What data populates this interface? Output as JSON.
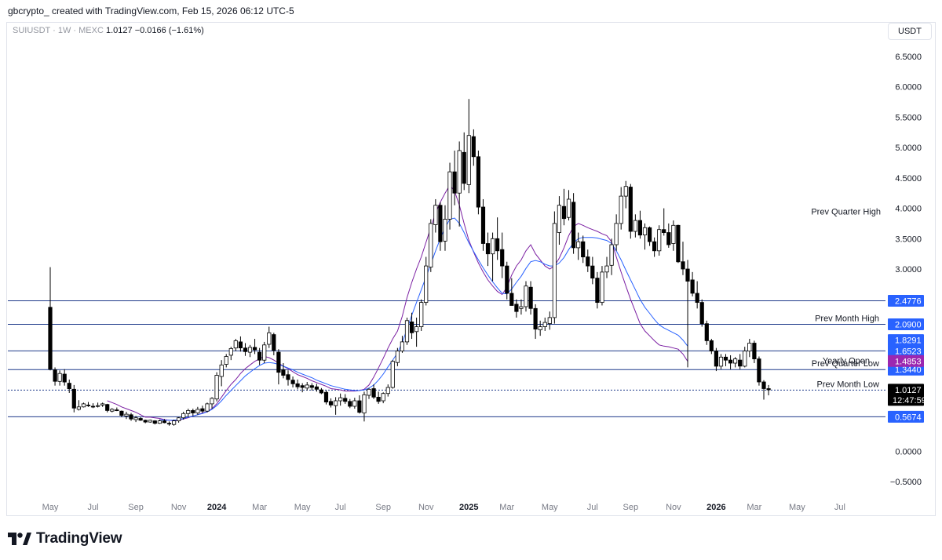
{
  "header": {
    "credit": "gbcrypto_ created with TradingView.com, Feb 15, 2026 06:12 UTC-5"
  },
  "symbol": {
    "name": "SUIUSDT · 1W · MEXC",
    "last": "1.0127",
    "change": "−0.0166 (−1.61%)"
  },
  "currency_button": "USDT",
  "brand": {
    "name": "TradingView",
    "logo_icon": "tradingview-logo-icon"
  },
  "colors": {
    "up": "#ffffff",
    "down": "#000000",
    "wick": "#000000",
    "ema_fast": "#7b1fa2",
    "ema_slow": "#2962ff",
    "level": "#1e3a8a",
    "label_bg": "#2962ff",
    "yearly_bg": "#9c27b0",
    "last_bg": "#000000"
  },
  "chart_data": {
    "type": "candlestick",
    "timeframe": "1W",
    "ylim": [
      -0.6,
      6.8
    ],
    "y_ticks": [
      6.5,
      6.0,
      5.5,
      5.0,
      4.5,
      4.0,
      3.5,
      3.0,
      0.0,
      -0.5
    ],
    "y_tick_labels": [
      "6.5000",
      "6.0000",
      "5.5000",
      "5.0000",
      "4.5000",
      "4.0000",
      "3.5000",
      "3.0000",
      "0.0000",
      "−0.5000"
    ],
    "x_ticks": [
      {
        "label": "May",
        "year": false,
        "i": 0
      },
      {
        "label": "Jul",
        "year": false,
        "i": 9
      },
      {
        "label": "Sep",
        "year": false,
        "i": 18
      },
      {
        "label": "Nov",
        "year": false,
        "i": 27
      },
      {
        "label": "2024",
        "year": true,
        "i": 35
      },
      {
        "label": "Mar",
        "year": false,
        "i": 44
      },
      {
        "label": "May",
        "year": false,
        "i": 53
      },
      {
        "label": "Jul",
        "year": false,
        "i": 61
      },
      {
        "label": "Sep",
        "year": false,
        "i": 70
      },
      {
        "label": "Nov",
        "year": false,
        "i": 79
      },
      {
        "label": "2025",
        "year": true,
        "i": 88
      },
      {
        "label": "Mar",
        "year": false,
        "i": 96
      },
      {
        "label": "May",
        "year": false,
        "i": 105
      },
      {
        "label": "Jul",
        "year": false,
        "i": 114
      },
      {
        "label": "Sep",
        "year": false,
        "i": 122
      },
      {
        "label": "Nov",
        "year": false,
        "i": 131
      },
      {
        "label": "2026",
        "year": true,
        "i": 140
      },
      {
        "label": "Mar",
        "year": false,
        "i": 148
      },
      {
        "label": "May",
        "year": false,
        "i": 157
      },
      {
        "label": "Jul",
        "year": false,
        "i": 166
      }
    ],
    "levels": [
      {
        "value": 2.4776,
        "label": "2.4776",
        "name": "",
        "style": "solid"
      },
      {
        "value": 2.09,
        "label": "2.0900",
        "name": "Prev Month High",
        "style": "solid"
      },
      {
        "value": 1.6523,
        "label": "1.6523",
        "name": "",
        "style": "solid"
      },
      {
        "value": 1.344,
        "label": "1.3440",
        "name": "Prev Quarter Low",
        "style": "solid"
      },
      {
        "value": 1.0058,
        "label": "1.0058",
        "name": "Prev Month Low",
        "style": "dashed"
      },
      {
        "value": 0.5674,
        "label": "0.5674",
        "name": "",
        "style": "solid"
      }
    ],
    "price_labels": [
      {
        "value": 1.8291,
        "label": "1.8291",
        "kind": "plain"
      },
      {
        "value": 1.4853,
        "label": "1.4853",
        "kind": "yearly"
      },
      {
        "value": 1.0127,
        "label": "1.0127",
        "kind": "last",
        "timer": "12:47:59"
      }
    ],
    "annotations": [
      {
        "text": "Prev Quarter High",
        "value": 3.95
      },
      {
        "text": "Yearly Open",
        "value": 1.4853
      }
    ],
    "series": [
      {
        "name": "",
        "kind": "ema-fast",
        "values": [
          null,
          null,
          null,
          null,
          null,
          null,
          null,
          null,
          null,
          null,
          null,
          null,
          0.83,
          0.8,
          0.77,
          0.73,
          0.7,
          0.67,
          0.64,
          0.6,
          0.56,
          0.56,
          0.55,
          0.54,
          0.52,
          0.51,
          0.5,
          0.51,
          0.53,
          0.55,
          0.58,
          0.6,
          0.63,
          0.65,
          0.7,
          0.78,
          0.89,
          1.0,
          1.1,
          1.18,
          1.28,
          1.36,
          1.42,
          1.48,
          1.52,
          1.56,
          1.54,
          1.5,
          1.45,
          1.4,
          1.36,
          1.31,
          1.26,
          1.23,
          1.2,
          1.16,
          1.13,
          1.1,
          1.07,
          1.03,
          1.02,
          1.01,
          0.99,
          0.99,
          0.99,
          1.0,
          1.02,
          1.09,
          1.22,
          1.37,
          1.53,
          1.7,
          1.85,
          1.98,
          2.22,
          2.53,
          2.78,
          3.0,
          3.2,
          3.44,
          3.68,
          3.92,
          4.1,
          4.25,
          4.38,
          4.28,
          4.05,
          3.75,
          3.47,
          3.28,
          3.1,
          2.95,
          2.82,
          2.72,
          2.63,
          2.58,
          2.7,
          2.9,
          3.05,
          3.15,
          3.3,
          3.4,
          3.25,
          3.15,
          3.05,
          3.0,
          3.05,
          3.18,
          3.35,
          3.55,
          3.7,
          3.75,
          3.72,
          3.68,
          3.65,
          3.62,
          3.58,
          3.55,
          3.45,
          3.2,
          2.95,
          2.72,
          2.5,
          2.3,
          2.1,
          1.98,
          1.9,
          1.82,
          1.75,
          1.73,
          1.72,
          1.7,
          1.68,
          1.6,
          1.48
        ]
      },
      {
        "name": "",
        "kind": "ema-slow",
        "values": [
          null,
          null,
          null,
          null,
          null,
          null,
          null,
          null,
          null,
          null,
          null,
          null,
          null,
          null,
          null,
          null,
          null,
          null,
          null,
          null,
          null,
          null,
          null,
          0.52,
          0.51,
          0.51,
          0.51,
          0.52,
          0.54,
          0.56,
          0.58,
          0.6,
          0.62,
          0.65,
          0.69,
          0.75,
          0.83,
          0.92,
          1.0,
          1.08,
          1.16,
          1.24,
          1.3,
          1.36,
          1.41,
          1.45,
          1.46,
          1.45,
          1.43,
          1.4,
          1.37,
          1.34,
          1.3,
          1.27,
          1.24,
          1.21,
          1.17,
          1.14,
          1.11,
          1.08,
          1.06,
          1.04,
          1.02,
          1.01,
          1.0,
          1.0,
          1.01,
          1.04,
          1.09,
          1.17,
          1.27,
          1.39,
          1.5,
          1.62,
          1.79,
          2.01,
          2.24,
          2.45,
          2.66,
          2.87,
          3.08,
          3.3,
          3.5,
          3.68,
          3.82,
          3.84,
          3.75,
          3.6,
          3.43,
          3.29,
          3.15,
          3.02,
          2.9,
          2.79,
          2.69,
          2.6,
          2.59,
          2.67,
          2.78,
          2.88,
          3.01,
          3.12,
          3.14,
          3.12,
          3.08,
          3.05,
          3.05,
          3.1,
          3.19,
          3.32,
          3.43,
          3.5,
          3.52,
          3.52,
          3.52,
          3.51,
          3.49,
          3.47,
          3.42,
          3.3,
          3.15,
          2.98,
          2.82,
          2.66,
          2.5,
          2.37,
          2.27,
          2.17,
          2.08,
          2.03,
          1.99,
          1.95,
          1.91,
          1.83,
          1.73
        ]
      }
    ],
    "candles": [
      [
        2.37,
        3.03,
        1.33,
        1.35
      ],
      [
        1.34,
        1.38,
        1.08,
        1.15
      ],
      [
        1.15,
        1.33,
        1.08,
        1.28
      ],
      [
        1.27,
        1.35,
        1.08,
        1.14
      ],
      [
        1.12,
        1.18,
        0.96,
        1.03
      ],
      [
        1.02,
        1.09,
        0.64,
        0.71
      ],
      [
        0.69,
        0.84,
        0.67,
        0.73
      ],
      [
        0.73,
        0.8,
        0.72,
        0.78
      ],
      [
        0.76,
        0.81,
        0.73,
        0.75
      ],
      [
        0.74,
        0.79,
        0.71,
        0.73
      ],
      [
        0.74,
        0.8,
        0.72,
        0.75
      ],
      [
        0.76,
        0.8,
        0.73,
        0.78
      ],
      [
        0.77,
        0.78,
        0.64,
        0.67
      ],
      [
        0.66,
        0.71,
        0.64,
        0.69
      ],
      [
        0.68,
        0.72,
        0.66,
        0.67
      ],
      [
        0.66,
        0.67,
        0.56,
        0.59
      ],
      [
        0.58,
        0.65,
        0.53,
        0.61
      ],
      [
        0.6,
        0.63,
        0.5,
        0.53
      ],
      [
        0.52,
        0.58,
        0.48,
        0.55
      ],
      [
        0.54,
        0.56,
        0.5,
        0.51
      ],
      [
        0.51,
        0.52,
        0.46,
        0.48
      ],
      [
        0.48,
        0.52,
        0.47,
        0.51
      ],
      [
        0.5,
        0.51,
        0.44,
        0.46
      ],
      [
        0.46,
        0.52,
        0.45,
        0.5
      ],
      [
        0.5,
        0.53,
        0.46,
        0.47
      ],
      [
        0.46,
        0.49,
        0.42,
        0.45
      ],
      [
        0.44,
        0.52,
        0.42,
        0.5
      ],
      [
        0.5,
        0.56,
        0.47,
        0.55
      ],
      [
        0.55,
        0.65,
        0.52,
        0.62
      ],
      [
        0.62,
        0.7,
        0.56,
        0.67
      ],
      [
        0.67,
        0.7,
        0.58,
        0.63
      ],
      [
        0.63,
        0.73,
        0.6,
        0.69
      ],
      [
        0.7,
        0.75,
        0.63,
        0.66
      ],
      [
        0.66,
        0.8,
        0.64,
        0.78
      ],
      [
        0.78,
        0.89,
        0.7,
        0.87
      ],
      [
        0.86,
        1.3,
        0.82,
        1.25
      ],
      [
        1.23,
        1.5,
        1.07,
        1.42
      ],
      [
        1.43,
        1.6,
        1.38,
        1.56
      ],
      [
        1.58,
        1.72,
        1.5,
        1.69
      ],
      [
        1.7,
        1.85,
        1.65,
        1.82
      ],
      [
        1.8,
        1.89,
        1.64,
        1.7
      ],
      [
        1.7,
        1.78,
        1.57,
        1.64
      ],
      [
        1.63,
        1.75,
        1.55,
        1.71
      ],
      [
        1.71,
        1.85,
        1.6,
        1.67
      ],
      [
        1.63,
        1.7,
        1.42,
        1.5
      ],
      [
        1.5,
        1.8,
        1.45,
        1.75
      ],
      [
        1.76,
        2.05,
        1.7,
        1.95
      ],
      [
        1.92,
        1.95,
        1.58,
        1.66
      ],
      [
        1.63,
        1.68,
        1.1,
        1.3
      ],
      [
        1.34,
        1.45,
        1.2,
        1.25
      ],
      [
        1.26,
        1.33,
        1.08,
        1.18
      ],
      [
        1.17,
        1.23,
        1.05,
        1.11
      ],
      [
        1.11,
        1.18,
        1.02,
        1.06
      ],
      [
        1.08,
        1.12,
        0.97,
        1.05
      ],
      [
        1.04,
        1.14,
        1.0,
        1.09
      ],
      [
        1.08,
        1.12,
        1.0,
        1.05
      ],
      [
        1.06,
        1.11,
        0.98,
        1.02
      ],
      [
        1.01,
        1.04,
        0.94,
        0.96
      ],
      [
        0.97,
        1.0,
        0.77,
        0.81
      ],
      [
        0.82,
        0.87,
        0.72,
        0.76
      ],
      [
        0.75,
        0.89,
        0.6,
        0.83
      ],
      [
        0.83,
        0.95,
        0.75,
        0.88
      ],
      [
        0.87,
        0.94,
        0.78,
        0.82
      ],
      [
        0.82,
        0.86,
        0.71,
        0.74
      ],
      [
        0.74,
        0.88,
        0.7,
        0.83
      ],
      [
        0.83,
        0.92,
        0.62,
        0.64
      ],
      [
        0.63,
        0.98,
        0.49,
        0.93
      ],
      [
        0.92,
        1.04,
        0.86,
        1.02
      ],
      [
        1.03,
        1.1,
        0.86,
        0.89
      ],
      [
        0.89,
        0.98,
        0.78,
        0.82
      ],
      [
        0.83,
        0.97,
        0.79,
        0.95
      ],
      [
        0.95,
        1.1,
        0.9,
        1.05
      ],
      [
        1.05,
        1.5,
        1.03,
        1.48
      ],
      [
        1.46,
        1.7,
        1.4,
        1.65
      ],
      [
        1.65,
        1.9,
        1.62,
        1.8
      ],
      [
        1.8,
        2.2,
        1.75,
        2.15
      ],
      [
        2.13,
        2.28,
        1.85,
        1.95
      ],
      [
        1.97,
        2.2,
        1.72,
        2.05
      ],
      [
        2.05,
        2.5,
        1.98,
        2.45
      ],
      [
        2.45,
        3.2,
        2.4,
        3.05
      ],
      [
        3.03,
        3.82,
        2.95,
        3.75
      ],
      [
        3.73,
        4.15,
        3.6,
        4.05
      ],
      [
        4.05,
        4.1,
        3.3,
        3.45
      ],
      [
        3.46,
        4.05,
        3.3,
        3.82
      ],
      [
        3.82,
        4.75,
        3.65,
        4.6
      ],
      [
        4.6,
        4.95,
        4.05,
        4.25
      ],
      [
        4.25,
        5.1,
        3.7,
        4.95
      ],
      [
        4.92,
        5.25,
        4.3,
        4.41
      ],
      [
        4.39,
        5.8,
        4.25,
        5.2
      ],
      [
        5.18,
        5.3,
        4.7,
        4.85
      ],
      [
        4.85,
        4.95,
        3.9,
        4.02
      ],
      [
        4.02,
        4.15,
        3.3,
        3.42
      ],
      [
        3.42,
        3.6,
        3.05,
        3.25
      ],
      [
        3.25,
        3.6,
        2.8,
        3.5
      ],
      [
        3.5,
        3.85,
        3.15,
        3.3
      ],
      [
        3.32,
        3.6,
        2.85,
        3.05
      ],
      [
        3.05,
        3.12,
        2.5,
        2.6
      ],
      [
        2.6,
        2.85,
        2.4,
        2.4
      ],
      [
        2.42,
        2.5,
        2.2,
        2.3
      ],
      [
        2.35,
        2.5,
        2.25,
        2.38
      ],
      [
        2.38,
        2.8,
        2.3,
        2.72
      ],
      [
        2.7,
        2.8,
        2.25,
        2.35
      ],
      [
        2.35,
        2.42,
        1.85,
        2.01
      ],
      [
        2.0,
        2.15,
        1.9,
        2.05
      ],
      [
        2.05,
        2.2,
        1.98,
        2.12
      ],
      [
        2.1,
        2.3,
        2.0,
        2.2
      ],
      [
        2.2,
        3.95,
        2.1,
        3.75
      ],
      [
        3.6,
        4.2,
        3.4,
        4.05
      ],
      [
        4.03,
        4.32,
        3.72,
        3.83
      ],
      [
        3.85,
        4.3,
        3.8,
        4.15
      ],
      [
        4.1,
        4.25,
        3.25,
        3.35
      ],
      [
        3.35,
        3.6,
        3.15,
        3.45
      ],
      [
        3.45,
        3.55,
        3.1,
        3.2
      ],
      [
        3.2,
        3.32,
        2.95,
        3.05
      ],
      [
        3.05,
        3.2,
        2.75,
        2.85
      ],
      [
        2.85,
        2.95,
        2.35,
        2.45
      ],
      [
        2.45,
        3.05,
        2.4,
        2.95
      ],
      [
        2.95,
        3.2,
        2.85,
        3.05
      ],
      [
        3.06,
        3.5,
        2.9,
        3.4
      ],
      [
        3.4,
        3.9,
        3.3,
        3.75
      ],
      [
        3.75,
        4.35,
        3.65,
        4.2
      ],
      [
        4.2,
        4.45,
        4.0,
        4.36
      ],
      [
        4.35,
        4.4,
        3.5,
        3.62
      ],
      [
        3.62,
        3.9,
        3.52,
        3.8
      ],
      [
        3.8,
        3.96,
        3.5,
        3.56
      ],
      [
        3.56,
        3.75,
        3.32,
        3.68
      ],
      [
        3.68,
        3.7,
        3.38,
        3.45
      ],
      [
        3.45,
        3.52,
        3.2,
        3.3
      ],
      [
        3.3,
        3.72,
        3.22,
        3.65
      ],
      [
        3.65,
        4.0,
        3.55,
        3.6
      ],
      [
        3.6,
        3.75,
        3.35,
        3.4
      ],
      [
        3.42,
        3.8,
        3.3,
        3.72
      ],
      [
        3.72,
        3.73,
        3.1,
        3.12
      ],
      [
        3.12,
        3.45,
        2.9,
        3.0
      ],
      [
        3.0,
        3.15,
        1.38,
        2.8
      ],
      [
        2.82,
        2.95,
        2.55,
        2.6
      ],
      [
        2.6,
        2.8,
        2.35,
        2.45
      ],
      [
        2.45,
        2.5,
        2.05,
        2.1
      ],
      [
        2.1,
        2.15,
        1.75,
        1.82
      ],
      [
        1.82,
        1.85,
        1.6,
        1.65
      ],
      [
        1.65,
        1.7,
        1.32,
        1.4
      ],
      [
        1.4,
        1.6,
        1.35,
        1.55
      ],
      [
        1.55,
        1.6,
        1.4,
        1.5
      ],
      [
        1.5,
        1.58,
        1.35,
        1.45
      ],
      [
        1.45,
        1.55,
        1.38,
        1.52
      ],
      [
        1.5,
        1.6,
        1.35,
        1.4
      ],
      [
        1.4,
        1.72,
        1.38,
        1.65
      ],
      [
        1.65,
        1.85,
        1.55,
        1.78
      ],
      [
        1.78,
        1.82,
        1.45,
        1.52
      ],
      [
        1.52,
        1.56,
        1.08,
        1.14
      ],
      [
        1.14,
        1.17,
        0.85,
        1.03
      ],
      [
        1.03,
        1.09,
        0.92,
        1.01
      ]
    ]
  }
}
